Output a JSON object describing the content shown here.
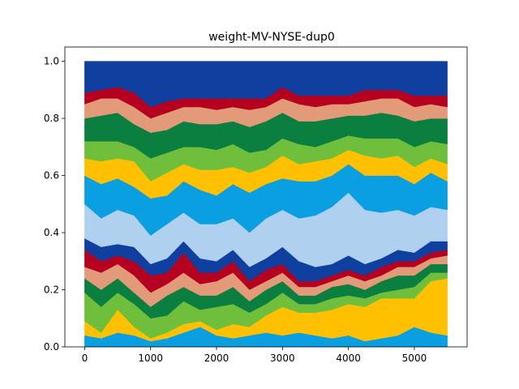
{
  "chart_data": {
    "type": "area",
    "title": "weight-MV-NYSE-dup0",
    "xlabel": "",
    "ylabel": "",
    "xlim": [
      -300,
      5800
    ],
    "ylim": [
      0,
      1.05
    ],
    "x_ticks": [
      0,
      1000,
      2000,
      3000,
      4000,
      5000
    ],
    "x_tick_labels": [
      "0",
      "1000",
      "2000",
      "3000",
      "4000",
      "5000"
    ],
    "y_ticks": [
      0.0,
      0.2,
      0.4,
      0.6,
      0.8,
      1.0
    ],
    "y_tick_labels": [
      "0.0",
      "0.2",
      "0.4",
      "0.6",
      "0.8",
      "1.0"
    ],
    "stacked": true,
    "grid": false,
    "legend": "none",
    "x": [
      0,
      250,
      500,
      750,
      1000,
      1250,
      1500,
      1750,
      2000,
      2250,
      2500,
      2750,
      3000,
      3250,
      3500,
      3750,
      4000,
      4250,
      4500,
      4750,
      5000,
      5250,
      5500
    ],
    "series": [
      {
        "color": "#0a9fe0",
        "values": [
          0.04,
          0.03,
          0.05,
          0.04,
          0.02,
          0.03,
          0.05,
          0.07,
          0.04,
          0.03,
          0.04,
          0.05,
          0.04,
          0.05,
          0.04,
          0.03,
          0.04,
          0.02,
          0.03,
          0.04,
          0.07,
          0.05,
          0.04
        ]
      },
      {
        "color": "#ffc000",
        "values": [
          0.05,
          0.02,
          0.08,
          0.03,
          0.01,
          0.02,
          0.03,
          0.02,
          0.02,
          0.05,
          0.03,
          0.06,
          0.1,
          0.07,
          0.08,
          0.1,
          0.11,
          0.12,
          0.14,
          0.13,
          0.1,
          0.18,
          0.2
        ]
      },
      {
        "color": "#6fbf3c",
        "values": [
          0.1,
          0.09,
          0.06,
          0.08,
          0.07,
          0.06,
          0.08,
          0.04,
          0.08,
          0.07,
          0.05,
          0.04,
          0.05,
          0.03,
          0.03,
          0.04,
          0.03,
          0.03,
          0.02,
          0.03,
          0.04,
          0.03,
          0.02
        ]
      },
      {
        "color": "#0b7f3f",
        "values": [
          0.05,
          0.06,
          0.05,
          0.04,
          0.04,
          0.07,
          0.05,
          0.05,
          0.04,
          0.06,
          0.04,
          0.05,
          0.04,
          0.03,
          0.03,
          0.04,
          0.04,
          0.03,
          0.04,
          0.05,
          0.04,
          0.03,
          0.03
        ]
      },
      {
        "color": "#e29a79",
        "values": [
          0.04,
          0.06,
          0.05,
          0.06,
          0.05,
          0.04,
          0.05,
          0.04,
          0.05,
          0.05,
          0.04,
          0.03,
          0.03,
          0.03,
          0.03,
          0.02,
          0.03,
          0.03,
          0.02,
          0.03,
          0.03,
          0.02,
          0.03
        ]
      },
      {
        "color": "#b5001f",
        "values": [
          0.06,
          0.04,
          0.03,
          0.05,
          0.06,
          0.04,
          0.07,
          0.04,
          0.03,
          0.04,
          0.03,
          0.04,
          0.03,
          0.02,
          0.02,
          0.02,
          0.02,
          0.02,
          0.03,
          0.02,
          0.02,
          0.02,
          0.02
        ]
      },
      {
        "color": "#0f3f9f",
        "values": [
          0.04,
          0.05,
          0.04,
          0.05,
          0.04,
          0.05,
          0.04,
          0.05,
          0.04,
          0.04,
          0.05,
          0.04,
          0.06,
          0.07,
          0.05,
          0.04,
          0.05,
          0.04,
          0.03,
          0.04,
          0.03,
          0.04,
          0.03
        ]
      },
      {
        "color": "#b0d0f0",
        "values": [
          0.12,
          0.1,
          0.12,
          0.11,
          0.1,
          0.12,
          0.1,
          0.12,
          0.13,
          0.11,
          0.12,
          0.14,
          0.13,
          0.15,
          0.18,
          0.2,
          0.22,
          0.19,
          0.16,
          0.14,
          0.13,
          0.12,
          0.11
        ]
      },
      {
        "color": "#0a9fe0",
        "values": [
          0.1,
          0.12,
          0.11,
          0.1,
          0.13,
          0.1,
          0.11,
          0.12,
          0.1,
          0.12,
          0.14,
          0.12,
          0.11,
          0.13,
          0.12,
          0.11,
          0.1,
          0.12,
          0.13,
          0.12,
          0.11,
          0.12,
          0.1
        ]
      },
      {
        "color": "#ffc000",
        "values": [
          0.06,
          0.08,
          0.07,
          0.09,
          0.06,
          0.08,
          0.06,
          0.07,
          0.09,
          0.06,
          0.07,
          0.06,
          0.08,
          0.06,
          0.07,
          0.06,
          0.05,
          0.07,
          0.06,
          0.07,
          0.06,
          0.05,
          0.06
        ]
      },
      {
        "color": "#6fbf3c",
        "values": [
          0.06,
          0.07,
          0.06,
          0.05,
          0.08,
          0.07,
          0.06,
          0.08,
          0.07,
          0.08,
          0.07,
          0.06,
          0.06,
          0.07,
          0.05,
          0.06,
          0.05,
          0.06,
          0.07,
          0.06,
          0.07,
          0.06,
          0.07
        ]
      },
      {
        "color": "#0b7f3f",
        "values": [
          0.08,
          0.09,
          0.1,
          0.08,
          0.09,
          0.08,
          0.09,
          0.08,
          0.09,
          0.08,
          0.09,
          0.1,
          0.09,
          0.08,
          0.09,
          0.08,
          0.07,
          0.08,
          0.09,
          0.08,
          0.09,
          0.08,
          0.09
        ]
      },
      {
        "color": "#e29a79",
        "values": [
          0.05,
          0.06,
          0.05,
          0.06,
          0.05,
          0.06,
          0.05,
          0.06,
          0.05,
          0.05,
          0.06,
          0.05,
          0.05,
          0.06,
          0.05,
          0.05,
          0.04,
          0.05,
          0.05,
          0.06,
          0.05,
          0.05,
          0.04
        ]
      },
      {
        "color": "#b5001f",
        "values": [
          0.04,
          0.03,
          0.04,
          0.05,
          0.04,
          0.04,
          0.03,
          0.03,
          0.04,
          0.03,
          0.04,
          0.03,
          0.04,
          0.03,
          0.04,
          0.03,
          0.03,
          0.04,
          0.03,
          0.03,
          0.04,
          0.03,
          0.04
        ]
      },
      {
        "color": "#0f3f9f",
        "values": [
          0.11,
          0.1,
          0.09,
          0.11,
          0.16,
          0.14,
          0.13,
          0.13,
          0.13,
          0.13,
          0.13,
          0.13,
          0.09,
          0.12,
          0.12,
          0.12,
          0.12,
          0.1,
          0.1,
          0.1,
          0.12,
          0.12,
          0.12
        ]
      }
    ]
  }
}
